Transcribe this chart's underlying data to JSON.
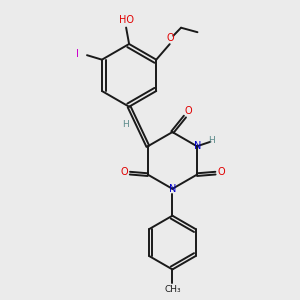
{
  "bg_color": "#ebebeb",
  "bond_color": "#1a1a1a",
  "N_color": "#0000cd",
  "O_color": "#e00000",
  "I_color": "#cc00cc",
  "H_color": "#5a8a8a",
  "figsize": [
    3.0,
    3.0
  ],
  "dpi": 100,
  "xlim": [
    0,
    10
  ],
  "ylim": [
    0,
    10
  ]
}
